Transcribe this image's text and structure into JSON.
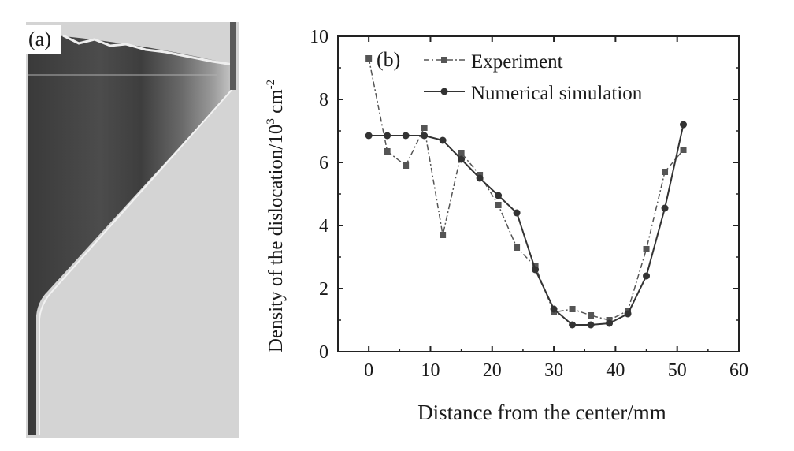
{
  "panel_a": {
    "label": "(a)"
  },
  "chart_data": {
    "type": "line",
    "panel_label": "(b)",
    "title": "",
    "xlabel": "Distance from the center/mm",
    "ylabel_main": "Density of the dislocation/10",
    "ylabel_sup1": "3",
    "ylabel_unit": " cm",
    "ylabel_sup2": "-2",
    "xlim": [
      -5,
      60
    ],
    "ylim": [
      0,
      10
    ],
    "xticks": [
      0,
      10,
      20,
      30,
      40,
      50,
      60
    ],
    "yticks": [
      0,
      2,
      4,
      6,
      8,
      10
    ],
    "grid": false,
    "legend_position": "top-left",
    "series": [
      {
        "name": "Experiment",
        "marker": "square",
        "line_style": "dash-dot",
        "color": "#555555",
        "x": [
          0,
          3,
          6,
          9,
          12,
          15,
          18,
          21,
          24,
          27,
          30,
          33,
          36,
          39,
          42,
          45,
          48,
          51
        ],
        "y": [
          9.3,
          6.35,
          5.9,
          7.1,
          3.7,
          6.3,
          5.6,
          4.65,
          3.3,
          2.7,
          1.25,
          1.35,
          1.15,
          1.0,
          1.3,
          3.25,
          5.7,
          6.4
        ]
      },
      {
        "name": "Numerical simulation",
        "marker": "circle",
        "line_style": "solid",
        "color": "#333333",
        "x": [
          0,
          3,
          6,
          9,
          12,
          15,
          18,
          21,
          24,
          27,
          30,
          33,
          36,
          39,
          42,
          45,
          48,
          51
        ],
        "y": [
          6.85,
          6.85,
          6.85,
          6.85,
          6.7,
          6.1,
          5.5,
          4.95,
          4.4,
          2.6,
          1.35,
          0.85,
          0.85,
          0.9,
          1.2,
          2.4,
          4.55,
          7.2
        ]
      }
    ]
  }
}
